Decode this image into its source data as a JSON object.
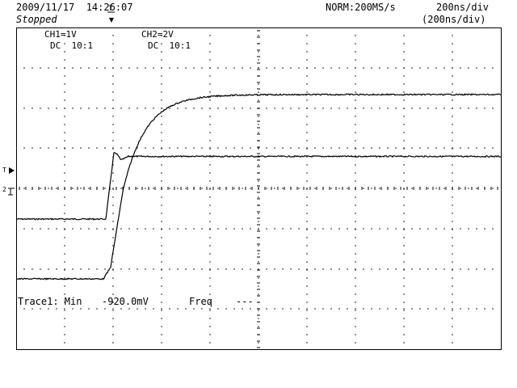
{
  "header": {
    "datetime": "2009/11/17  14:26:07",
    "status": "Stopped",
    "acquisition": "NORM:200MS/s",
    "timebase": "200ns/div",
    "timebase_sub": "(200ns/div)"
  },
  "channels": [
    {
      "label": "CH1=1V",
      "coupling": "DC  10:1"
    },
    {
      "label": "CH2=2V",
      "coupling": "DC  10:1"
    }
  ],
  "markers": {
    "trigger_time": "T",
    "trigger_level": "T",
    "ch_ground": "2"
  },
  "measurement": {
    "trace_label": "Trace1: Min",
    "trace_value": "-920.0mV",
    "freq_label": "Freq",
    "freq_value": "---"
  },
  "colors": {
    "trace": "#000000",
    "grid": "#000000",
    "background": "#ffffff"
  }
}
